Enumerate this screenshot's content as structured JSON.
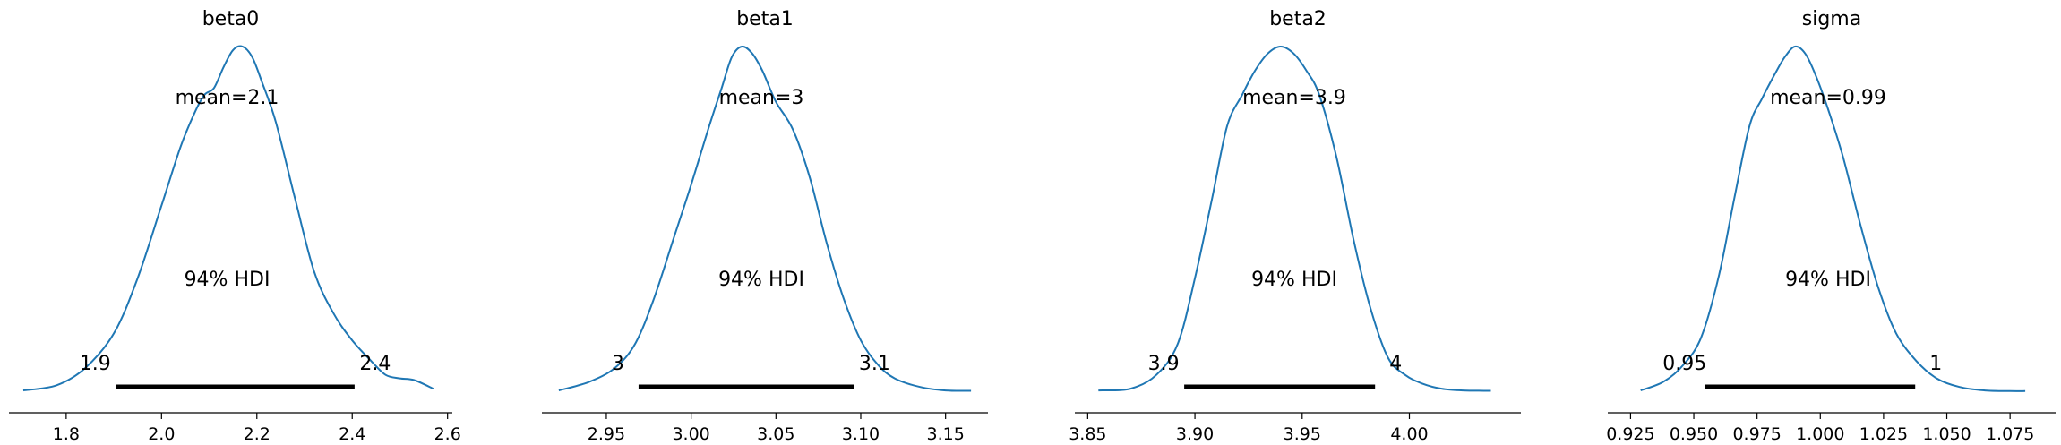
{
  "chart_data": [
    {
      "type": "line",
      "title": "beta0",
      "xlim": [
        1.68,
        2.61
      ],
      "xticks": [
        1.8,
        2.0,
        2.2,
        2.4,
        2.6
      ],
      "xtick_labels": [
        "1.8",
        "2.0",
        "2.2",
        "2.4",
        "2.6"
      ],
      "mean_label": "mean=2.1",
      "hdi_label": "94% HDI",
      "hdi": [
        1.904,
        2.405
      ],
      "hdi_low_label": "1.9",
      "hdi_high_label": "2.4",
      "density": {
        "x": [
          1.71,
          1.78,
          1.84,
          1.9,
          1.95,
          2.0,
          2.04,
          2.07,
          2.09,
          2.11,
          2.13,
          2.15,
          2.17,
          2.19,
          2.21,
          2.24,
          2.28,
          2.32,
          2.36,
          2.4,
          2.44,
          2.47,
          2.5,
          2.53,
          2.57
        ],
        "y": [
          0.005,
          0.02,
          0.07,
          0.17,
          0.33,
          0.54,
          0.71,
          0.81,
          0.86,
          0.88,
          0.94,
          0.99,
          1.0,
          0.97,
          0.9,
          0.78,
          0.56,
          0.35,
          0.23,
          0.15,
          0.09,
          0.05,
          0.04,
          0.035,
          0.01
        ]
      }
    },
    {
      "type": "line",
      "title": "beta1",
      "xlim": [
        2.912,
        3.175
      ],
      "xticks": [
        2.95,
        3.0,
        3.05,
        3.1,
        3.15
      ],
      "xtick_labels": [
        "2.95",
        "3.00",
        "3.05",
        "3.10",
        "3.15"
      ],
      "mean_label": "mean=3",
      "hdi_label": "94% HDI",
      "hdi": [
        2.969,
        3.096
      ],
      "hdi_low_label": "3",
      "hdi_high_label": "3.1",
      "density": {
        "x": [
          2.922,
          2.94,
          2.955,
          2.967,
          2.978,
          2.99,
          3.0,
          3.01,
          3.018,
          3.024,
          3.03,
          3.036,
          3.042,
          3.05,
          3.06,
          3.07,
          3.08,
          3.09,
          3.1,
          3.11,
          3.12,
          3.135,
          3.15,
          3.165
        ],
        "y": [
          0.005,
          0.03,
          0.07,
          0.14,
          0.27,
          0.45,
          0.6,
          0.76,
          0.88,
          0.97,
          1.0,
          0.98,
          0.93,
          0.84,
          0.76,
          0.62,
          0.43,
          0.27,
          0.15,
          0.08,
          0.04,
          0.015,
          0.005,
          0.004
        ]
      }
    },
    {
      "type": "line",
      "title": "beta2",
      "xlim": [
        3.844,
        4.052
      ],
      "xticks": [
        3.85,
        3.9,
        3.95,
        4.0
      ],
      "xtick_labels": [
        "3.85",
        "3.90",
        "3.95",
        "4.00"
      ],
      "mean_label": "mean=3.9",
      "hdi_label": "94% HDI",
      "hdi": [
        3.895,
        3.984
      ],
      "hdi_low_label": "3.9",
      "hdi_high_label": "4",
      "density": {
        "x": [
          3.855,
          3.87,
          3.882,
          3.892,
          3.9,
          3.908,
          3.915,
          3.922,
          3.928,
          3.934,
          3.94,
          3.946,
          3.952,
          3.958,
          3.966,
          3.974,
          3.982,
          3.99,
          3.998,
          4.006,
          4.015,
          4.025,
          4.038
        ],
        "y": [
          0.005,
          0.01,
          0.05,
          0.14,
          0.33,
          0.56,
          0.77,
          0.86,
          0.93,
          0.98,
          1.0,
          0.98,
          0.93,
          0.86,
          0.68,
          0.44,
          0.24,
          0.1,
          0.05,
          0.025,
          0.01,
          0.005,
          0.004
        ]
      }
    },
    {
      "type": "line",
      "title": "sigma",
      "xlim": [
        0.916,
        1.093
      ],
      "xticks": [
        0.925,
        0.95,
        0.975,
        1.0,
        1.025,
        1.05,
        1.075
      ],
      "xtick_labels": [
        "0.925",
        "0.950",
        "0.975",
        "1.000",
        "1.025",
        "1.050",
        "1.075"
      ],
      "mean_label": "mean=0.99",
      "hdi_label": "94% HDI",
      "hdi": [
        0.9545,
        1.0375
      ],
      "hdi_low_label": "0.95",
      "hdi_high_label": "1",
      "density": {
        "x": [
          0.929,
          0.938,
          0.946,
          0.953,
          0.96,
          0.966,
          0.972,
          0.977,
          0.982,
          0.986,
          0.99,
          0.994,
          0.998,
          1.003,
          1.009,
          1.016,
          1.023,
          1.03,
          1.038,
          1.046,
          1.055,
          1.065,
          1.075,
          1.081
        ],
        "y": [
          0.005,
          0.03,
          0.08,
          0.16,
          0.34,
          0.56,
          0.77,
          0.85,
          0.92,
          0.97,
          1.0,
          0.98,
          0.92,
          0.82,
          0.68,
          0.48,
          0.3,
          0.17,
          0.09,
          0.04,
          0.015,
          0.005,
          0.003,
          0.003
        ]
      }
    }
  ],
  "colors": {
    "kde_line": "#1f77b4",
    "hdi_bar": "#000000",
    "axis": "#000000"
  }
}
